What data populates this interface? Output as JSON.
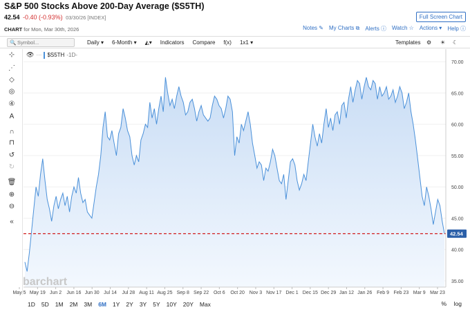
{
  "header": {
    "title": "S&P 500 Stocks Above 200-Day Average ($S5TH)",
    "fullscreen_label": "Full Screen Chart",
    "last": "42.54",
    "change": "-0.40 (-0.93%)",
    "date_meta": "03/30/26 [INDEX]",
    "chart_label": "CHART",
    "chart_date": "for Mon, Mar 30th, 2026",
    "links": [
      "Notes ✎",
      "My Charts ⧉",
      "Alerts ⓘ",
      "Watch ☆",
      "Actions ▾",
      "Help ⓘ"
    ]
  },
  "toolbar": {
    "symbol_placeholder": "Symbol...",
    "period": "Daily ▾",
    "range": "6-Month ▾",
    "chart_type_icon": "mountain-chart-icon",
    "indicators": "Indicators",
    "compare": "Compare",
    "fx": "f(x)",
    "layout": "1x1 ▾",
    "templates": "Templates"
  },
  "legend": {
    "symbol": "$S5TH",
    "interval": "-1D-"
  },
  "watermark": "barchart",
  "bottom": {
    "ranges": [
      "1D",
      "5D",
      "1M",
      "2M",
      "3M",
      "6M",
      "1Y",
      "2Y",
      "3Y",
      "5Y",
      "10Y",
      "20Y",
      "Max"
    ],
    "active_range": "6M",
    "pct": "%",
    "log": "log"
  },
  "colors": {
    "line": "#4a90d9",
    "fill": "#dceafa",
    "last_line": "#d32f2f",
    "badge": "#2a5fa8"
  },
  "chart_data": {
    "type": "area",
    "title": "S&P 500 Stocks Above 200-Day Average ($S5TH)",
    "ylim": [
      34,
      72
    ],
    "yticks": [
      35,
      40,
      45,
      50,
      55,
      60,
      65,
      70
    ],
    "ytick_labels": [
      "35.00",
      "40.00",
      "45.00",
      "50.00",
      "55.00",
      "60.00",
      "65.00",
      "70.00"
    ],
    "xtick_labels": [
      "May 5",
      "May 19",
      "Jun 2",
      "Jun 16",
      "Jun 30",
      "Jul 14",
      "Jul 28",
      "Aug 11",
      "Aug 25",
      "Sep 8",
      "Sep 22",
      "Oct 6",
      "Oct 20",
      "Nov 3",
      "Nov 17",
      "Dec 1",
      "Dec 15",
      "Dec 29",
      "Jan 12",
      "Jan 26",
      "Feb 9",
      "Feb 23",
      "Mar 9",
      "Mar 23"
    ],
    "last_value": 42.54,
    "last_label": "42.54",
    "values": [
      38.0,
      36.5,
      39.5,
      43.0,
      46.5,
      50.0,
      48.5,
      52.0,
      54.5,
      51.0,
      48.0,
      46.5,
      44.5,
      47.0,
      48.5,
      46.5,
      48.0,
      49.0,
      47.0,
      48.5,
      46.0,
      48.5,
      50.0,
      49.0,
      51.5,
      49.0,
      47.5,
      48.0,
      46.0,
      45.5,
      45.0,
      47.5,
      50.0,
      52.0,
      55.0,
      59.5,
      62.0,
      58.0,
      57.5,
      59.0,
      57.0,
      55.0,
      58.5,
      59.5,
      62.5,
      61.0,
      59.0,
      58.0,
      55.0,
      53.5,
      55.0,
      54.0,
      57.5,
      58.5,
      60.0,
      59.5,
      63.5,
      61.0,
      62.5,
      60.0,
      62.5,
      64.5,
      62.0,
      67.5,
      65.0,
      63.0,
      64.0,
      62.5,
      64.5,
      66.0,
      64.5,
      63.5,
      61.5,
      62.0,
      63.5,
      64.0,
      62.5,
      60.5,
      62.0,
      63.0,
      61.5,
      61.0,
      60.5,
      61.0,
      63.0,
      64.5,
      64.0,
      63.0,
      62.5,
      61.0,
      62.5,
      64.5,
      64.0,
      62.0,
      55.0,
      58.0,
      57.0,
      60.0,
      59.0,
      60.5,
      62.0,
      60.0,
      57.0,
      55.0,
      53.0,
      54.0,
      53.5,
      51.0,
      53.0,
      52.5,
      54.0,
      56.0,
      55.0,
      53.0,
      51.0,
      50.5,
      52.0,
      48.0,
      51.0,
      54.0,
      54.5,
      53.5,
      51.0,
      49.5,
      50.5,
      52.0,
      51.0,
      54.0,
      57.0,
      60.0,
      58.0,
      56.5,
      58.5,
      57.0,
      60.0,
      62.5,
      59.5,
      61.0,
      59.0,
      61.5,
      62.0,
      60.0,
      63.0,
      63.5,
      61.0,
      64.0,
      66.0,
      63.5,
      65.5,
      67.0,
      66.5,
      64.0,
      66.0,
      67.5,
      66.0,
      65.5,
      67.0,
      66.5,
      64.0,
      66.0,
      64.5,
      65.0,
      66.0,
      64.0,
      64.5,
      65.5,
      63.5,
      64.5,
      66.0,
      65.0,
      62.5,
      63.5,
      65.0,
      62.0,
      60.0,
      57.5,
      54.5,
      51.5,
      48.5,
      47.0,
      50.0,
      48.5,
      46.5,
      44.0,
      46.0,
      48.0,
      47.0,
      44.5,
      42.54
    ]
  }
}
